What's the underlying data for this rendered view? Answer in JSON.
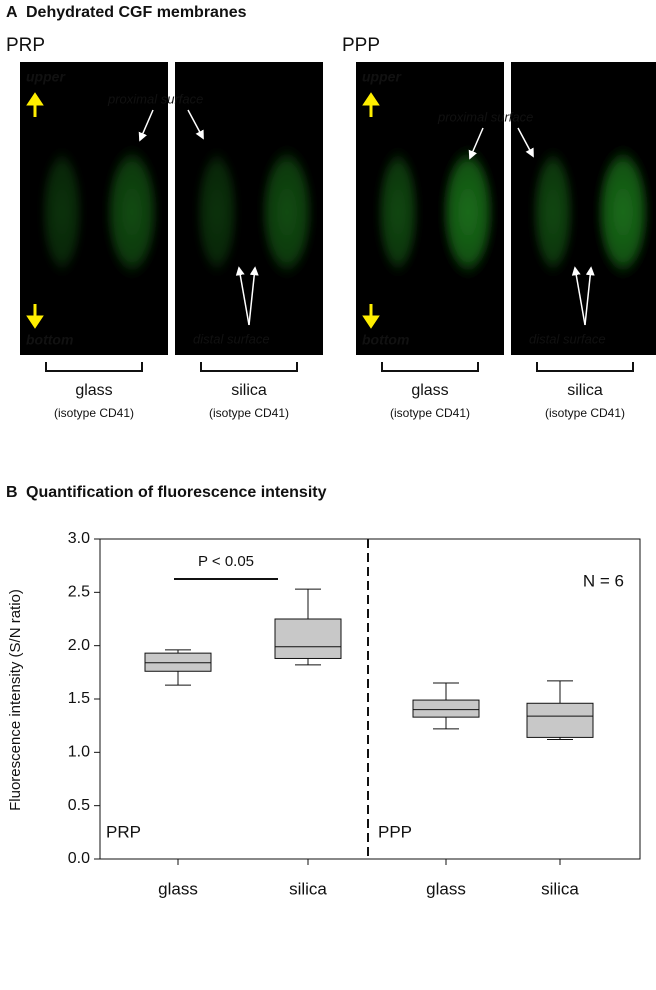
{
  "panel_a": {
    "letter": "A",
    "title": "Dehydrated CGF membranes",
    "groups": [
      {
        "label": "PRP",
        "top_label": "upper",
        "bottom_label": "bottom",
        "proximal": "proximal surface",
        "distal": "distal surface",
        "conditions": [
          {
            "name": "glass",
            "sub": "(isotype CD41)"
          },
          {
            "name": "silica",
            "sub": "(isotype CD41)"
          }
        ]
      },
      {
        "label": "PPP",
        "top_label": "upper",
        "bottom_label": "bottom",
        "proximal": "proximal surface",
        "distal": "distal surface",
        "conditions": [
          {
            "name": "glass",
            "sub": "(isotype CD41)"
          },
          {
            "name": "silica",
            "sub": "(isotype CD41)"
          }
        ]
      }
    ]
  },
  "chart_data": {
    "type": "box",
    "letter": "B",
    "title": "Quantification of fluorescence intensity",
    "ylabel": "Fluorescence intensity (S/N ratio)",
    "categories": [
      "glass",
      "silica",
      "glass",
      "silica"
    ],
    "group_labels": [
      "PRP",
      "PPP"
    ],
    "boxes": [
      {
        "min": 1.63,
        "q1": 1.76,
        "median": 1.84,
        "q3": 1.93,
        "max": 1.96
      },
      {
        "min": 1.82,
        "q1": 1.88,
        "median": 1.99,
        "q3": 2.25,
        "max": 2.53
      },
      {
        "min": 1.22,
        "q1": 1.33,
        "median": 1.4,
        "q3": 1.49,
        "max": 1.65
      },
      {
        "min": 1.12,
        "q1": 1.14,
        "median": 1.34,
        "q3": 1.46,
        "max": 1.67
      }
    ],
    "color": "#c8c8c8",
    "annotation": "P < 0.05",
    "n_label": "N = 6",
    "ylim": [
      0,
      3
    ],
    "yticks": [
      {
        "value": 0,
        "label": "0.0"
      },
      {
        "value": 0.5,
        "label": "0.5"
      },
      {
        "value": 1,
        "label": "1.0"
      },
      {
        "value": 1.5,
        "label": "1.5"
      },
      {
        "value": 2,
        "label": "2.0"
      },
      {
        "value": 2.5,
        "label": "2.5"
      },
      {
        "value": 3,
        "label": "3.0"
      }
    ]
  }
}
